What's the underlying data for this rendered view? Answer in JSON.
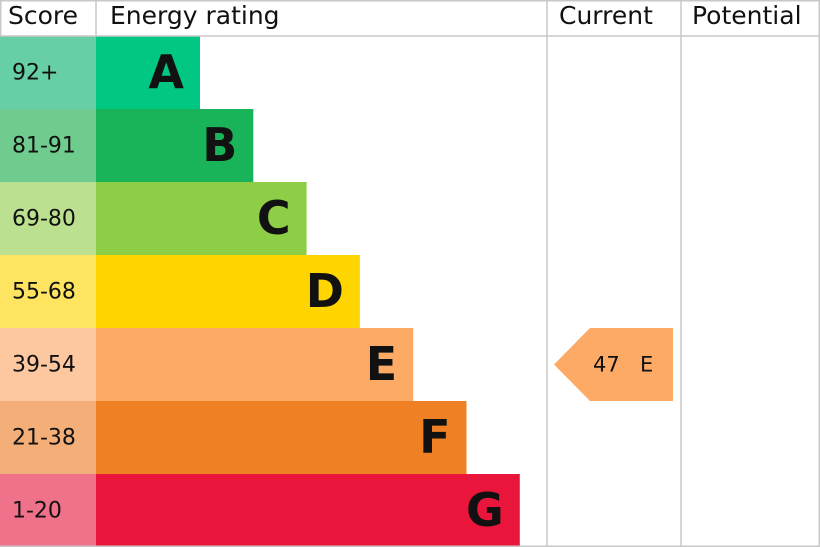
{
  "header": {
    "score": "Score",
    "energy_rating": "Energy rating",
    "current": "Current",
    "potential": "Potential"
  },
  "rows": [
    {
      "score": "92+",
      "rating": "A",
      "color": "#00c781",
      "score_color": "#66cfa6"
    },
    {
      "score": "81-91",
      "rating": "B",
      "color": "#19b459",
      "score_color": "#6fcc8e"
    },
    {
      "score": "69-80",
      "rating": "C",
      "color": "#8dce46",
      "score_color": "#bbe08f"
    },
    {
      "score": "55-68",
      "rating": "D",
      "color": "#ffd500",
      "score_color": "#ffe461"
    },
    {
      "score": "39-54",
      "rating": "E",
      "color": "#fcaa65",
      "score_color": "#fdc8a0"
    },
    {
      "score": "21-38",
      "rating": "F",
      "color": "#ef8023",
      "score_color": "#f4ae78"
    },
    {
      "score": "1-20",
      "rating": "G",
      "color": "#e9153b",
      "score_color": "#f0718a"
    }
  ],
  "current": {
    "score": 47,
    "rating": "E"
  }
}
